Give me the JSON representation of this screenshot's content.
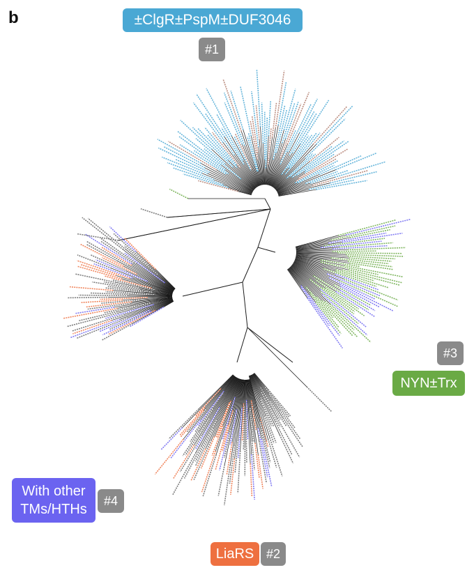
{
  "panel_letter": "b",
  "clades": [
    {
      "id": "1",
      "name": "±ClgR±PspM±DUF3046",
      "number": "#1",
      "color": "#4aa8d4"
    },
    {
      "id": "2",
      "name": "LiaRS",
      "number": "#2",
      "color": "#ee7040"
    },
    {
      "id": "3",
      "name": "NYN±Trx",
      "number": "#3",
      "color": "#6aaa45"
    },
    {
      "id": "4",
      "name": "With other TMs/HTHs",
      "name_line1": "With other",
      "name_line2": "TMs/HTHs",
      "number": "#4",
      "color": "#6b63f0"
    }
  ],
  "colors": {
    "branch": "#1a1a1a",
    "number_box": "#8a8a8a",
    "gray_leaf": "#666666"
  }
}
